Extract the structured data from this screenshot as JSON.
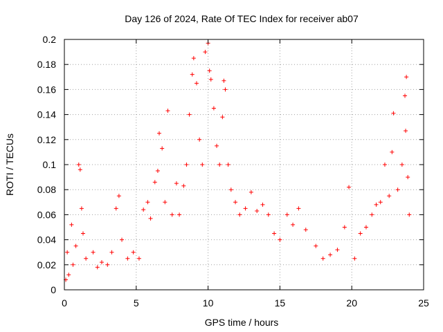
{
  "chart_data": {
    "type": "scatter",
    "title": "Day 126 of 2024, Rate Of TEC Index for receiver ab07",
    "xlabel": "GPS time / hours",
    "ylabel": "ROTI / TECUs",
    "xlim": [
      0,
      25
    ],
    "ylim": [
      0,
      0.2
    ],
    "xticks": [
      "0",
      "5",
      "10",
      "15",
      "20",
      "25"
    ],
    "yticks": [
      "0",
      "0.02",
      "0.04",
      "0.06",
      "0.08",
      "0.1",
      "0.12",
      "0.14",
      "0.16",
      "0.18",
      "0.2"
    ],
    "grid": true,
    "marker": "+",
    "series": [
      {
        "color": "#ff0000",
        "points": [
          [
            0.1,
            0.008
          ],
          [
            0.2,
            0.03
          ],
          [
            0.3,
            0.012
          ],
          [
            0.5,
            0.052
          ],
          [
            0.6,
            0.02
          ],
          [
            0.8,
            0.035
          ],
          [
            1.0,
            0.1
          ],
          [
            1.1,
            0.096
          ],
          [
            1.2,
            0.065
          ],
          [
            1.3,
            0.045
          ],
          [
            1.5,
            0.025
          ],
          [
            2.0,
            0.03
          ],
          [
            2.3,
            0.018
          ],
          [
            2.6,
            0.022
          ],
          [
            3.0,
            0.02
          ],
          [
            3.3,
            0.03
          ],
          [
            3.6,
            0.065
          ],
          [
            3.8,
            0.075
          ],
          [
            4.0,
            0.04
          ],
          [
            4.4,
            0.025
          ],
          [
            4.8,
            0.03
          ],
          [
            5.2,
            0.025
          ],
          [
            5.5,
            0.064
          ],
          [
            5.8,
            0.07
          ],
          [
            6.0,
            0.057
          ],
          [
            6.3,
            0.086
          ],
          [
            6.5,
            0.095
          ],
          [
            6.6,
            0.125
          ],
          [
            6.8,
            0.113
          ],
          [
            7.0,
            0.07
          ],
          [
            7.2,
            0.143
          ],
          [
            7.5,
            0.06
          ],
          [
            7.8,
            0.085
          ],
          [
            8.0,
            0.06
          ],
          [
            8.3,
            0.083
          ],
          [
            8.5,
            0.1
          ],
          [
            8.7,
            0.14
          ],
          [
            8.9,
            0.172
          ],
          [
            9.0,
            0.185
          ],
          [
            9.2,
            0.165
          ],
          [
            9.4,
            0.12
          ],
          [
            9.6,
            0.1
          ],
          [
            9.8,
            0.19
          ],
          [
            10.0,
            0.197
          ],
          [
            10.1,
            0.175
          ],
          [
            10.2,
            0.168
          ],
          [
            10.4,
            0.145
          ],
          [
            10.6,
            0.115
          ],
          [
            10.8,
            0.1
          ],
          [
            11.0,
            0.138
          ],
          [
            11.1,
            0.167
          ],
          [
            11.2,
            0.16
          ],
          [
            11.4,
            0.1
          ],
          [
            11.6,
            0.08
          ],
          [
            11.9,
            0.07
          ],
          [
            12.2,
            0.06
          ],
          [
            12.6,
            0.065
          ],
          [
            13.0,
            0.078
          ],
          [
            13.4,
            0.063
          ],
          [
            13.8,
            0.068
          ],
          [
            14.2,
            0.06
          ],
          [
            14.6,
            0.045
          ],
          [
            15.0,
            0.04
          ],
          [
            15.5,
            0.06
          ],
          [
            15.9,
            0.052
          ],
          [
            16.3,
            0.065
          ],
          [
            16.8,
            0.048
          ],
          [
            17.5,
            0.035
          ],
          [
            18.0,
            0.025
          ],
          [
            18.5,
            0.028
          ],
          [
            19.0,
            0.032
          ],
          [
            19.5,
            0.05
          ],
          [
            19.8,
            0.082
          ],
          [
            20.2,
            0.025
          ],
          [
            20.6,
            0.045
          ],
          [
            21.0,
            0.05
          ],
          [
            21.4,
            0.06
          ],
          [
            21.7,
            0.068
          ],
          [
            22.0,
            0.07
          ],
          [
            22.3,
            0.1
          ],
          [
            22.6,
            0.075
          ],
          [
            22.8,
            0.11
          ],
          [
            22.9,
            0.141
          ],
          [
            23.2,
            0.08
          ],
          [
            23.5,
            0.1
          ],
          [
            23.7,
            0.155
          ],
          [
            23.75,
            0.127
          ],
          [
            23.8,
            0.17
          ],
          [
            23.9,
            0.09
          ],
          [
            24.0,
            0.06
          ]
        ]
      }
    ]
  }
}
